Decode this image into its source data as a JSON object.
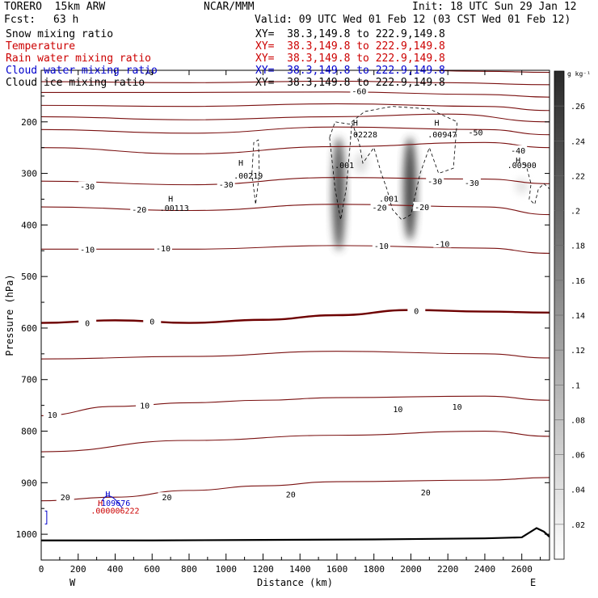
{
  "header": {
    "model_name": "TORERO  15km ARW",
    "org": "NCAR/MMM",
    "init": "Init: 18 UTC Sun 29 Jan 12",
    "fcst_label": "Fcst:",
    "fcst_value": "63 h",
    "valid": "Valid: 09 UTC Wed 01 Feb 12 (03 CST Wed 01 Feb 12)"
  },
  "legend": [
    {
      "name": "Snow mixing ratio",
      "xy": "XY=  38.3,149.8 to 222.9,149.8",
      "color": "#000000"
    },
    {
      "name": "Temperature",
      "xy": "XY=  38.3,149.8 to 222.9,149.8",
      "color": "#cc0000"
    },
    {
      "name": "Rain water mixing ratio",
      "xy": "XY=  38.3,149.8 to 222.9,149.8",
      "color": "#cc0000"
    },
    {
      "name": "Cloud water mixing ratio",
      "xy": "XY=  38.3,149.8 to 222.9,149.8",
      "color": "#0000cc"
    },
    {
      "name": "Cloud ice mixing ratio",
      "xy": "XY=  38.3,149.8 to 222.9,149.8",
      "color": "#000000"
    }
  ],
  "colors": {
    "temperature_contour": "#7a1010",
    "zero_contour": "#6e0000",
    "ice_contour": "#000000",
    "cloud_water": "#0000cc",
    "rain_water": "#cc0000",
    "terrain": "#000000"
  },
  "chart_data": {
    "type": "contour cross-section",
    "xlabel": "Distance (km)",
    "ylabel": "Pressure (hPa)",
    "xlim": [
      0,
      2750
    ],
    "ylim": [
      1050,
      100
    ],
    "x_ticks": [
      0,
      200,
      400,
      600,
      800,
      1000,
      1200,
      1400,
      1600,
      1800,
      2000,
      2200,
      2400,
      2600
    ],
    "y_ticks": [
      200,
      300,
      400,
      500,
      600,
      700,
      800,
      900,
      1000
    ],
    "x_endpoints": {
      "left": "W",
      "right": "E"
    },
    "colorbar": {
      "unit": "g kg⁻¹",
      "ticks": [
        ".02",
        ".04",
        ".06",
        ".08",
        ".1",
        ".12",
        ".14",
        ".16",
        ".18",
        ".2",
        ".22",
        ".24",
        ".26"
      ],
      "range": [
        0,
        0.28
      ]
    },
    "temperature_contours": [
      {
        "label": "-70",
        "values": [
          [
            0,
            95
          ],
          [
            600,
            96
          ],
          [
            1200,
            97
          ],
          [
            1800,
            98
          ],
          [
            2400,
            102
          ],
          [
            2750,
            104
          ]
        ],
        "label_at": [
          [
            570,
            103
          ]
        ]
      },
      {
        "label": "",
        "values": [
          [
            0,
            122
          ],
          [
            800,
            124
          ],
          [
            1600,
            121
          ],
          [
            2200,
            124
          ],
          [
            2750,
            128
          ]
        ],
        "label_at": []
      },
      {
        "label": "-60",
        "values": [
          [
            0,
            143
          ],
          [
            800,
            143
          ],
          [
            1600,
            142
          ],
          [
            2400,
            147
          ],
          [
            2750,
            152
          ]
        ],
        "label_at": [
          [
            1720,
            140
          ]
        ]
      },
      {
        "label": "",
        "values": [
          [
            0,
            168
          ],
          [
            800,
            170
          ],
          [
            1600,
            165
          ],
          [
            2400,
            170
          ],
          [
            2750,
            178
          ]
        ],
        "label_at": []
      },
      {
        "label": "-50",
        "values": [
          [
            0,
            190
          ],
          [
            800,
            196
          ],
          [
            1600,
            190
          ],
          [
            2200,
            185
          ],
          [
            2750,
            200
          ]
        ],
        "label_at": [
          [
            2350,
            220
          ]
        ]
      },
      {
        "label": "",
        "values": [
          [
            0,
            215
          ],
          [
            800,
            222
          ],
          [
            1600,
            210
          ],
          [
            2400,
            215
          ],
          [
            2750,
            225
          ]
        ],
        "label_at": []
      },
      {
        "label": "-40",
        "values": [
          [
            0,
            250
          ],
          [
            800,
            262
          ],
          [
            1600,
            248
          ],
          [
            2400,
            240
          ],
          [
            2750,
            250
          ]
        ],
        "label_at": [
          [
            2580,
            255
          ]
        ]
      },
      {
        "label": "-30",
        "values": [
          [
            0,
            315
          ],
          [
            800,
            322
          ],
          [
            1600,
            308
          ],
          [
            2400,
            311
          ],
          [
            2750,
            320
          ]
        ],
        "label_at": [
          [
            250,
            325
          ],
          [
            1000,
            321
          ],
          [
            2130,
            315
          ],
          [
            2330,
            318
          ]
        ]
      },
      {
        "label": "-20",
        "values": [
          [
            0,
            365
          ],
          [
            800,
            372
          ],
          [
            1600,
            360
          ],
          [
            2400,
            365
          ],
          [
            2750,
            380
          ]
        ],
        "label_at": [
          [
            530,
            370
          ],
          [
            1830,
            366
          ],
          [
            2060,
            365
          ]
        ]
      },
      {
        "label": "-10",
        "values": [
          [
            0,
            447
          ],
          [
            800,
            447
          ],
          [
            1600,
            440
          ],
          [
            2400,
            445
          ],
          [
            2750,
            455
          ]
        ],
        "label_at": [
          [
            250,
            447
          ],
          [
            660,
            445
          ],
          [
            1840,
            440
          ],
          [
            2170,
            436
          ]
        ]
      },
      {
        "label": "0",
        "values": [
          [
            0,
            590
          ],
          [
            400,
            585
          ],
          [
            800,
            590
          ],
          [
            1200,
            584
          ],
          [
            1600,
            575
          ],
          [
            2000,
            565
          ],
          [
            2400,
            568
          ],
          [
            2750,
            570
          ]
        ],
        "label_at": [
          [
            250,
            590
          ],
          [
            600,
            587
          ],
          [
            2030,
            566
          ]
        ],
        "thick": true
      },
      {
        "label": "",
        "values": [
          [
            0,
            660
          ],
          [
            800,
            655
          ],
          [
            1600,
            645
          ],
          [
            2400,
            650
          ],
          [
            2750,
            658
          ]
        ],
        "label_at": []
      },
      {
        "label": "10",
        "values": [
          [
            0,
            770
          ],
          [
            400,
            752
          ],
          [
            800,
            745
          ],
          [
            1200,
            740
          ],
          [
            1600,
            735
          ],
          [
            2400,
            732
          ],
          [
            2750,
            740
          ]
        ],
        "label_at": [
          [
            60,
            768
          ],
          [
            560,
            750
          ],
          [
            1930,
            757
          ],
          [
            2250,
            752
          ]
        ]
      },
      {
        "label": "",
        "values": [
          [
            0,
            840
          ],
          [
            800,
            818
          ],
          [
            1600,
            808
          ],
          [
            2400,
            800
          ],
          [
            2750,
            810
          ]
        ],
        "label_at": []
      },
      {
        "label": "20",
        "values": [
          [
            0,
            935
          ],
          [
            400,
            928
          ],
          [
            800,
            915
          ],
          [
            1200,
            906
          ],
          [
            1600,
            898
          ],
          [
            2400,
            895
          ],
          [
            2750,
            890
          ]
        ],
        "label_at": [
          [
            130,
            928
          ],
          [
            680,
            928
          ],
          [
            1350,
            922
          ],
          [
            2080,
            918
          ]
        ]
      }
    ],
    "annotations": [
      {
        "text": "H",
        "x": 700,
        "y": 355,
        "color": "#000000"
      },
      {
        "text": ".00113",
        "x": 720,
        "y": 373,
        "color": "#000000"
      },
      {
        "text": "H",
        "x": 1080,
        "y": 285,
        "color": "#000000"
      },
      {
        "text": ".00219",
        "x": 1120,
        "y": 310,
        "color": "#000000"
      },
      {
        "text": ".001",
        "x": 1640,
        "y": 290,
        "color": "#000000"
      },
      {
        "text": "H",
        "x": 1700,
        "y": 207,
        "color": "#000000"
      },
      {
        "text": ".02228",
        "x": 1740,
        "y": 230,
        "color": "#000000"
      },
      {
        "text": ".001",
        "x": 1880,
        "y": 355,
        "color": "#000000"
      },
      {
        "text": "H",
        "x": 2140,
        "y": 207,
        "color": "#000000"
      },
      {
        "text": ".00947",
        "x": 2170,
        "y": 230,
        "color": "#000000"
      },
      {
        "text": "H",
        "x": 2580,
        "y": 280,
        "color": "#000000"
      },
      {
        "text": ".00500",
        "x": 2600,
        "y": 290,
        "color": "#000000"
      },
      {
        "text": "H",
        "x": 360,
        "y": 928,
        "color": "#0000cc"
      },
      {
        "text": ".109676",
        "x": 390,
        "y": 945,
        "color": "#0000cc"
      },
      {
        "text": "H",
        "x": 320,
        "y": 945,
        "color": "#cc0000"
      },
      {
        "text": ".000006222",
        "x": 400,
        "y": 960,
        "color": "#cc0000"
      }
    ],
    "snow_plumes": [
      {
        "x": 1610,
        "p_top": 230,
        "p_bottom": 450,
        "peak": 0.24
      },
      {
        "x": 1995,
        "p_top": 230,
        "p_bottom": 430,
        "peak": 0.26
      },
      {
        "x": 1730,
        "p_top": 260,
        "p_bottom": 300,
        "peak": 0.05
      },
      {
        "x": 2600,
        "p_top": 310,
        "p_bottom": 340,
        "peak": 0.04
      }
    ],
    "terrain": [
      [
        0,
        1012
      ],
      [
        600,
        1012
      ],
      [
        1200,
        1011
      ],
      [
        1800,
        1010
      ],
      [
        2400,
        1008
      ],
      [
        2600,
        1006
      ],
      [
        2680,
        988
      ],
      [
        2720,
        995
      ],
      [
        2750,
        1005
      ]
    ]
  }
}
